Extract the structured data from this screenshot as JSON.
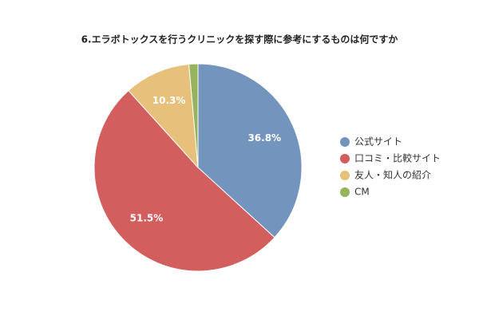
{
  "chart_data": {
    "type": "pie",
    "title": "6.エラボトックスを行うクリニックを探す際に参考にするものは何ですか",
    "categories": [
      "公式サイト",
      "口コミ・比較サイト",
      "友人・知人の紹介",
      "CM"
    ],
    "values": [
      36.8,
      51.5,
      10.3,
      1.4
    ],
    "value_labels": [
      "36.8%",
      "51.5%",
      "10.3%",
      null
    ],
    "colors": [
      "#7395bd",
      "#d25e5d",
      "#e7c17b",
      "#97b45d"
    ],
    "legend": "right"
  }
}
